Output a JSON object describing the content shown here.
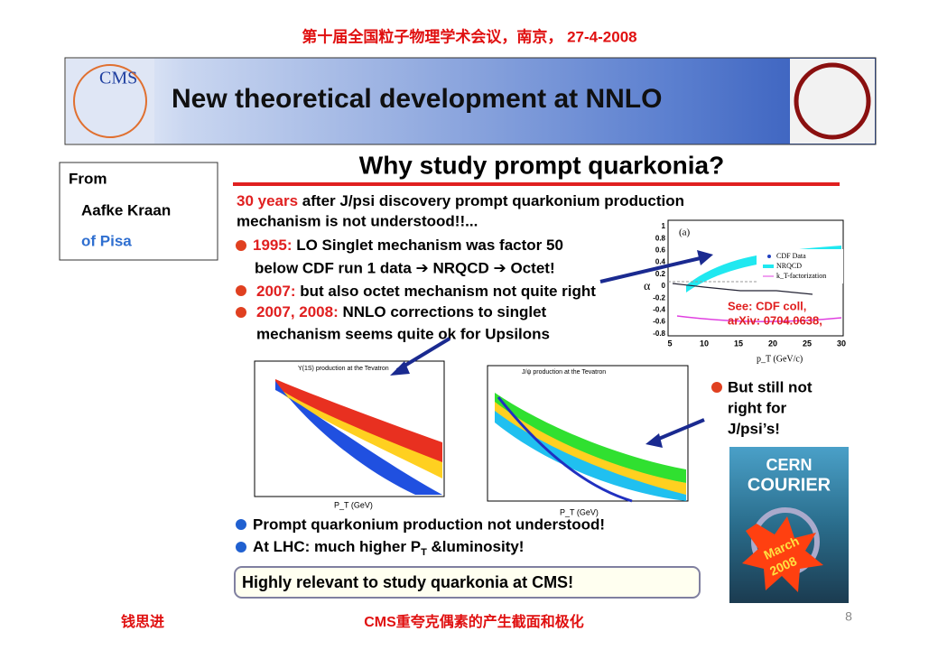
{
  "header": {
    "conference": "第十届全国粒子物理学术会议，南京， 27-4-2008",
    "title": "New theoretical development at NNLO",
    "logo_left": "CMS"
  },
  "sidebox": {
    "lines": [
      "From",
      "Aafke Kraan",
      "of Pisa"
    ]
  },
  "slide": {
    "title": "Why study prompt  quarkonia?",
    "intro": {
      "highlight": "30 years",
      "rest": " after J/psi discovery prompt quarkonium production",
      "line2": "mechanism is not understood!!..."
    },
    "bullets": [
      {
        "year": "1995:",
        "text": " LO Singlet mechanism was factor 50",
        "text2": "below CDF run 1 data ➔ NRQCD  ➔ Octet!"
      },
      {
        "year": "2007:",
        "text": " but also octet mechanism not quite right"
      },
      {
        "year": "2007, 2008:",
        "text": " NNLO corrections to singlet",
        "text2": "mechanism seems quite ok for Upsilons"
      }
    ],
    "plot_a": {
      "label": "(a)",
      "ylabel": "α",
      "xlabel": "p_T (GeV/c)",
      "yticks": [
        "1",
        "0.8",
        "0.6",
        "0.4",
        "0.2",
        "0",
        "-0.2",
        "-0.4",
        "-0.6",
        "-0.8"
      ],
      "xticks": [
        "5",
        "10",
        "15",
        "20",
        "25",
        "30"
      ],
      "legend": [
        "CDF Data",
        "NRQCD",
        "k_T-factorization"
      ],
      "note": [
        "See: CDF coll,",
        "arXiv: 0704.0638,"
      ]
    },
    "plot_upsilon": {
      "title": "Y(1S) production at the Tevatron",
      "xlabel": "P_T (GeV)"
    },
    "plot_jpsi": {
      "title": "J/ψ production at the Tevatron",
      "xlabel": "P_T (GeV)"
    },
    "right_note": [
      "But still not",
      "right for",
      "J/psi’s!"
    ],
    "bottom_bullets": [
      "Prompt quarkonium production not understood!",
      "At LHC: much higher P",
      "T",
      " &luminosity!"
    ],
    "box": "Highly relevant to study quarkonia at CMS!",
    "cover": {
      "line1": "CERN",
      "line2": "COURIER",
      "badge1": "March",
      "badge2": "2008"
    }
  },
  "footer": {
    "author": "钱思进",
    "topic": "CMS重夸克偶素的产生截面和极化",
    "page": "8"
  }
}
